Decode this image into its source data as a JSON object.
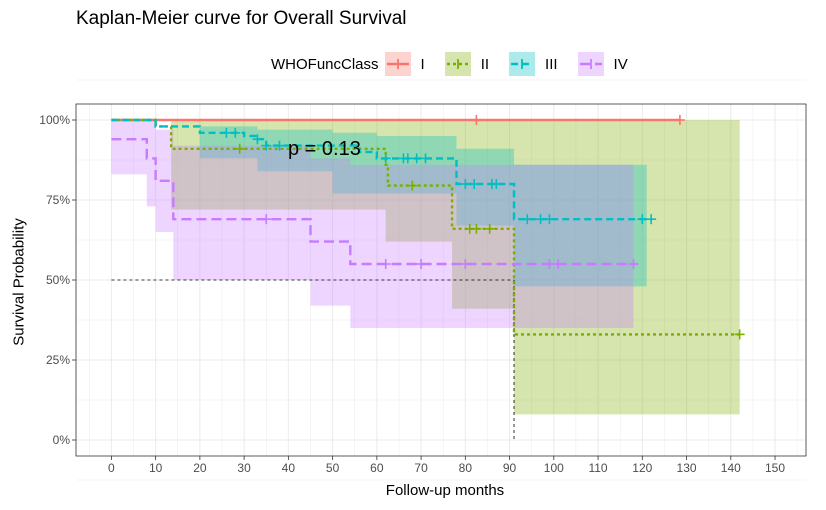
{
  "title": "Kaplan-Meier curve for Overall Survival",
  "legend": {
    "title": "WHOFuncClass",
    "items": [
      {
        "label": "I",
        "color": "#F8766D",
        "dash": "solid"
      },
      {
        "label": "II",
        "color": "#7CAE00",
        "dash": "dotted"
      },
      {
        "label": "III",
        "color": "#00BFC4",
        "dash": "dashed"
      },
      {
        "label": "IV",
        "color": "#C77CFF",
        "dash": "longdash"
      }
    ]
  },
  "pvalue_text": "p = 0.13",
  "chart_data": {
    "type": "line",
    "title": "Kaplan-Meier curve for Overall Survival",
    "xlabel": "Follow-up months",
    "ylabel": "Survival Probability",
    "xlim": [
      -8,
      157
    ],
    "ylim": [
      -0.05,
      1.05
    ],
    "xticks": [
      0,
      10,
      20,
      30,
      40,
      50,
      60,
      70,
      80,
      90,
      100,
      110,
      120,
      130,
      140,
      150
    ],
    "yticks": [
      0,
      0.25,
      0.5,
      0.75,
      1.0
    ],
    "ytick_labels": [
      "0%",
      "25%",
      "50%",
      "75%",
      "100%"
    ],
    "grid": true,
    "legend_position": "top",
    "median_line": {
      "y": 0.5,
      "x": 91
    },
    "series": [
      {
        "name": "I",
        "color": "#F8766D",
        "steps": [
          [
            0,
            1.0
          ],
          [
            128.5,
            1.0
          ]
        ],
        "censor": [
          82.5,
          128.5
        ],
        "ci": [
          [
            0,
            1.0,
            1.0
          ],
          [
            128.5,
            1.0,
            1.0
          ]
        ]
      },
      {
        "name": "II",
        "color": "#7CAE00",
        "steps": [
          [
            0,
            1.0
          ],
          [
            10,
            0.98
          ],
          [
            13.5,
            0.91
          ],
          [
            28,
            0.91
          ],
          [
            62,
            0.86
          ],
          [
            62.5,
            0.86
          ],
          [
            62.5,
            0.795
          ],
          [
            77,
            0.795
          ],
          [
            77,
            0.66
          ],
          [
            91,
            0.66
          ],
          [
            91,
            0.33
          ],
          [
            142,
            0.33
          ]
        ],
        "censor": [
          29,
          68,
          81,
          82.5,
          85.5,
          142
        ],
        "ci": [
          [
            0,
            1.0,
            1.0
          ],
          [
            13.5,
            1.0,
            0.72
          ],
          [
            62,
            1.0,
            0.62
          ],
          [
            77,
            1.0,
            0.41
          ],
          [
            91,
            1.0,
            0.08
          ],
          [
            142,
            1.0,
            0.08
          ]
        ]
      },
      {
        "name": "III",
        "color": "#00BFC4",
        "steps": [
          [
            0,
            1.0
          ],
          [
            10,
            1.0
          ],
          [
            10,
            0.98
          ],
          [
            20,
            0.98
          ],
          [
            20,
            0.96
          ],
          [
            30,
            0.95
          ],
          [
            33,
            0.94
          ],
          [
            35,
            0.92
          ],
          [
            50,
            0.92
          ],
          [
            56,
            0.9
          ],
          [
            60,
            0.88
          ],
          [
            74,
            0.88
          ],
          [
            78,
            0.8
          ],
          [
            91,
            0.8
          ],
          [
            91,
            0.69
          ],
          [
            122,
            0.69
          ]
        ],
        "censor": [
          26,
          28,
          33,
          35,
          38,
          62,
          66,
          67,
          69,
          71,
          80,
          82,
          86,
          87,
          94,
          97,
          99,
          120,
          122
        ],
        "ci": [
          [
            0,
            1.0,
            1.0
          ],
          [
            20,
            0.98,
            0.88
          ],
          [
            33,
            0.97,
            0.84
          ],
          [
            50,
            0.96,
            0.77
          ],
          [
            60,
            0.95,
            0.77
          ],
          [
            78,
            0.91,
            0.67
          ],
          [
            91,
            0.86,
            0.48
          ],
          [
            121,
            0.86,
            0.48
          ]
        ]
      },
      {
        "name": "IV",
        "color": "#C77CFF",
        "steps": [
          [
            0,
            0.94
          ],
          [
            8,
            0.94
          ],
          [
            8,
            0.88
          ],
          [
            10,
            0.88
          ],
          [
            10,
            0.81
          ],
          [
            14,
            0.81
          ],
          [
            14,
            0.69
          ],
          [
            45,
            0.69
          ],
          [
            45,
            0.62
          ],
          [
            54,
            0.62
          ],
          [
            54,
            0.55
          ],
          [
            119,
            0.55
          ]
        ],
        "censor": [
          35,
          62,
          70,
          80,
          99,
          101,
          118
        ],
        "ci": [
          [
            0,
            1.0,
            0.83
          ],
          [
            8,
            1.0,
            0.73
          ],
          [
            10,
            0.97,
            0.65
          ],
          [
            14,
            0.92,
            0.5
          ],
          [
            45,
            0.88,
            0.42
          ],
          [
            54,
            0.86,
            0.35
          ],
          [
            118,
            0.86,
            0.35
          ]
        ]
      }
    ]
  }
}
